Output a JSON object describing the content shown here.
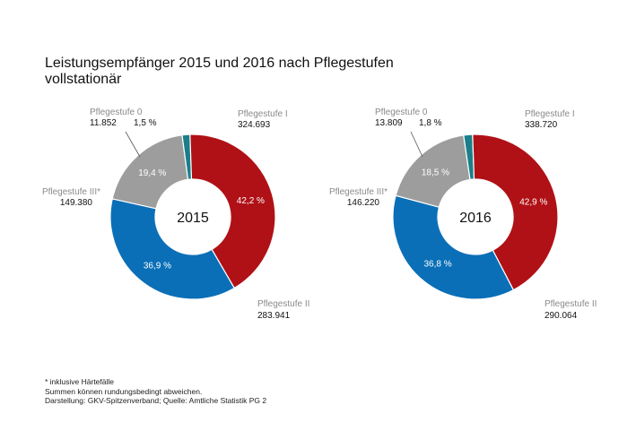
{
  "title": {
    "line1": "Leistungsempfänger 2015 und 2016 nach Pflegestufen",
    "line2": "vollstationär"
  },
  "colors": {
    "stufe0": "#1a7f8a",
    "stufe1": "#b01116",
    "stufe2": "#0a6fb7",
    "stufe3": "#9d9d9d"
  },
  "chart_data": [
    {
      "type": "pie",
      "center_label": "2015",
      "series": [
        {
          "name": "Pflegestufe 0",
          "value": 11852,
          "value_label": "11.852",
          "percent": 1.5,
          "percent_label": "1,5 %",
          "color_key": "stufe0"
        },
        {
          "name": "Pflegestufe I",
          "value": 324693,
          "value_label": "324.693",
          "percent": 42.2,
          "percent_label": "42,2 %",
          "color_key": "stufe1"
        },
        {
          "name": "Pflegestufe II",
          "value": 283941,
          "value_label": "283.941",
          "percent": 36.9,
          "percent_label": "36,9 %",
          "color_key": "stufe2"
        },
        {
          "name": "Pflegestufe III*",
          "value": 149380,
          "value_label": "149.380",
          "percent": 19.4,
          "percent_label": "19,4 %",
          "color_key": "stufe3"
        }
      ]
    },
    {
      "type": "pie",
      "center_label": "2016",
      "series": [
        {
          "name": "Pflegestufe 0",
          "value": 13809,
          "value_label": "13.809",
          "percent": 1.8,
          "percent_label": "1,8 %",
          "color_key": "stufe0"
        },
        {
          "name": "Pflegestufe I",
          "value": 338720,
          "value_label": "338.720",
          "percent": 42.9,
          "percent_label": "42,9 %",
          "color_key": "stufe1"
        },
        {
          "name": "Pflegestufe II",
          "value": 290064,
          "value_label": "290.064",
          "percent": 36.8,
          "percent_label": "36,8 %",
          "color_key": "stufe2"
        },
        {
          "name": "Pflegestufe III*",
          "value": 146220,
          "value_label": "146.220",
          "percent": 18.5,
          "percent_label": "18,5 %",
          "color_key": "stufe3"
        }
      ]
    }
  ],
  "footnotes": {
    "line1": "* inklusive Härtefälle",
    "line2": "Summen können rundungsbedingt abweichen.",
    "line3": "Darstellung: GKV-Spitzenverband; Quelle: Amtliche Statistik PG 2"
  }
}
